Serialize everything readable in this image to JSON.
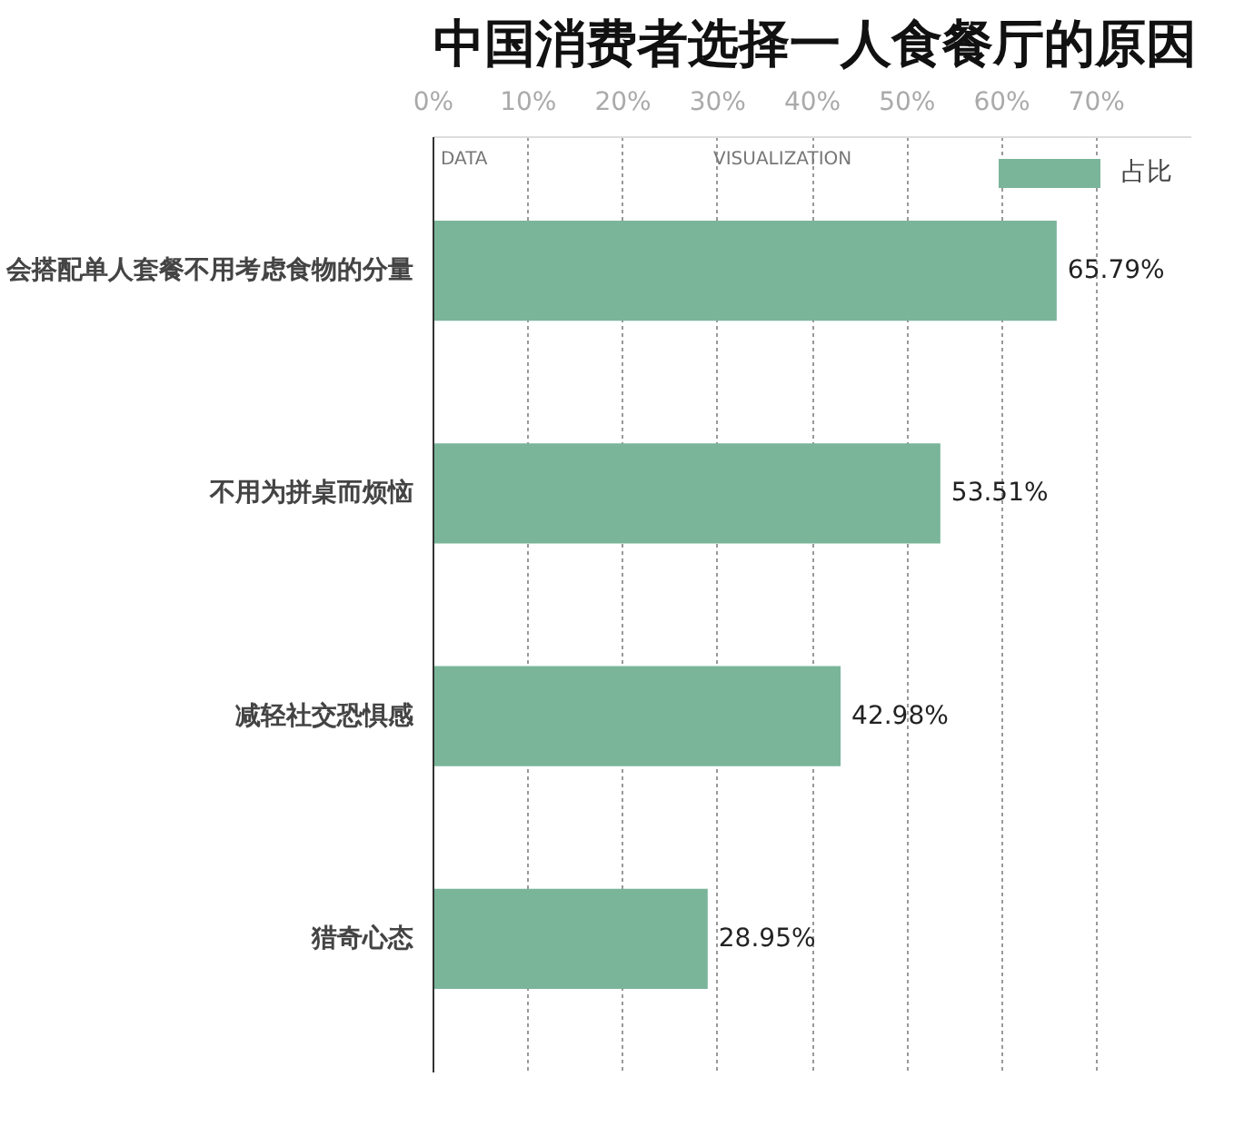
{
  "chart_data": {
    "type": "bar",
    "orientation": "horizontal",
    "title": "中国消费者选择一人食餐厅的原因",
    "annotations": [
      "DATA",
      "VISUALIZATION"
    ],
    "categories": [
      "会搭配单人套餐不用考虑食物的分量",
      "不用为拼桌而烦恼",
      "减轻社交恐惧感",
      "猎奇心态"
    ],
    "series": [
      {
        "name": "占比",
        "color": "#7ab59a",
        "values": [
          65.79,
          53.51,
          42.98,
          28.95
        ]
      }
    ],
    "value_labels": [
      "65.79%",
      "53.51%",
      "42.98%",
      "28.95%"
    ],
    "xlim": [
      0,
      80
    ],
    "xticks": [
      {
        "value": 0,
        "label": "0%"
      },
      {
        "value": 10,
        "label": "10%"
      },
      {
        "value": 20,
        "label": "20%"
      },
      {
        "value": 30,
        "label": "30%"
      },
      {
        "value": 40,
        "label": "40%"
      },
      {
        "value": 50,
        "label": "50%"
      },
      {
        "value": 60,
        "label": "60%"
      },
      {
        "value": 70,
        "label": "70%"
      }
    ],
    "grid": "x",
    "legend": "top right"
  }
}
